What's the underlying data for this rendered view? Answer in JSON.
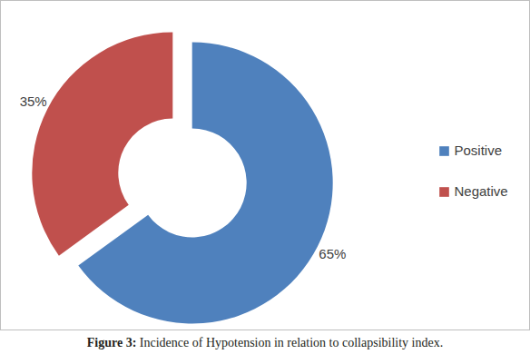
{
  "chart_data": {
    "type": "donut",
    "title": "Figure 3: Incidence of Hypotension in relation to collapsibility index.",
    "categories": [
      "Positive",
      "Negative"
    ],
    "values": [
      65,
      35
    ],
    "value_labels": [
      "65%",
      "35%"
    ],
    "colors": [
      "#4f81bd",
      "#c0504d"
    ],
    "data_labels": true,
    "legend": "right"
  }
}
